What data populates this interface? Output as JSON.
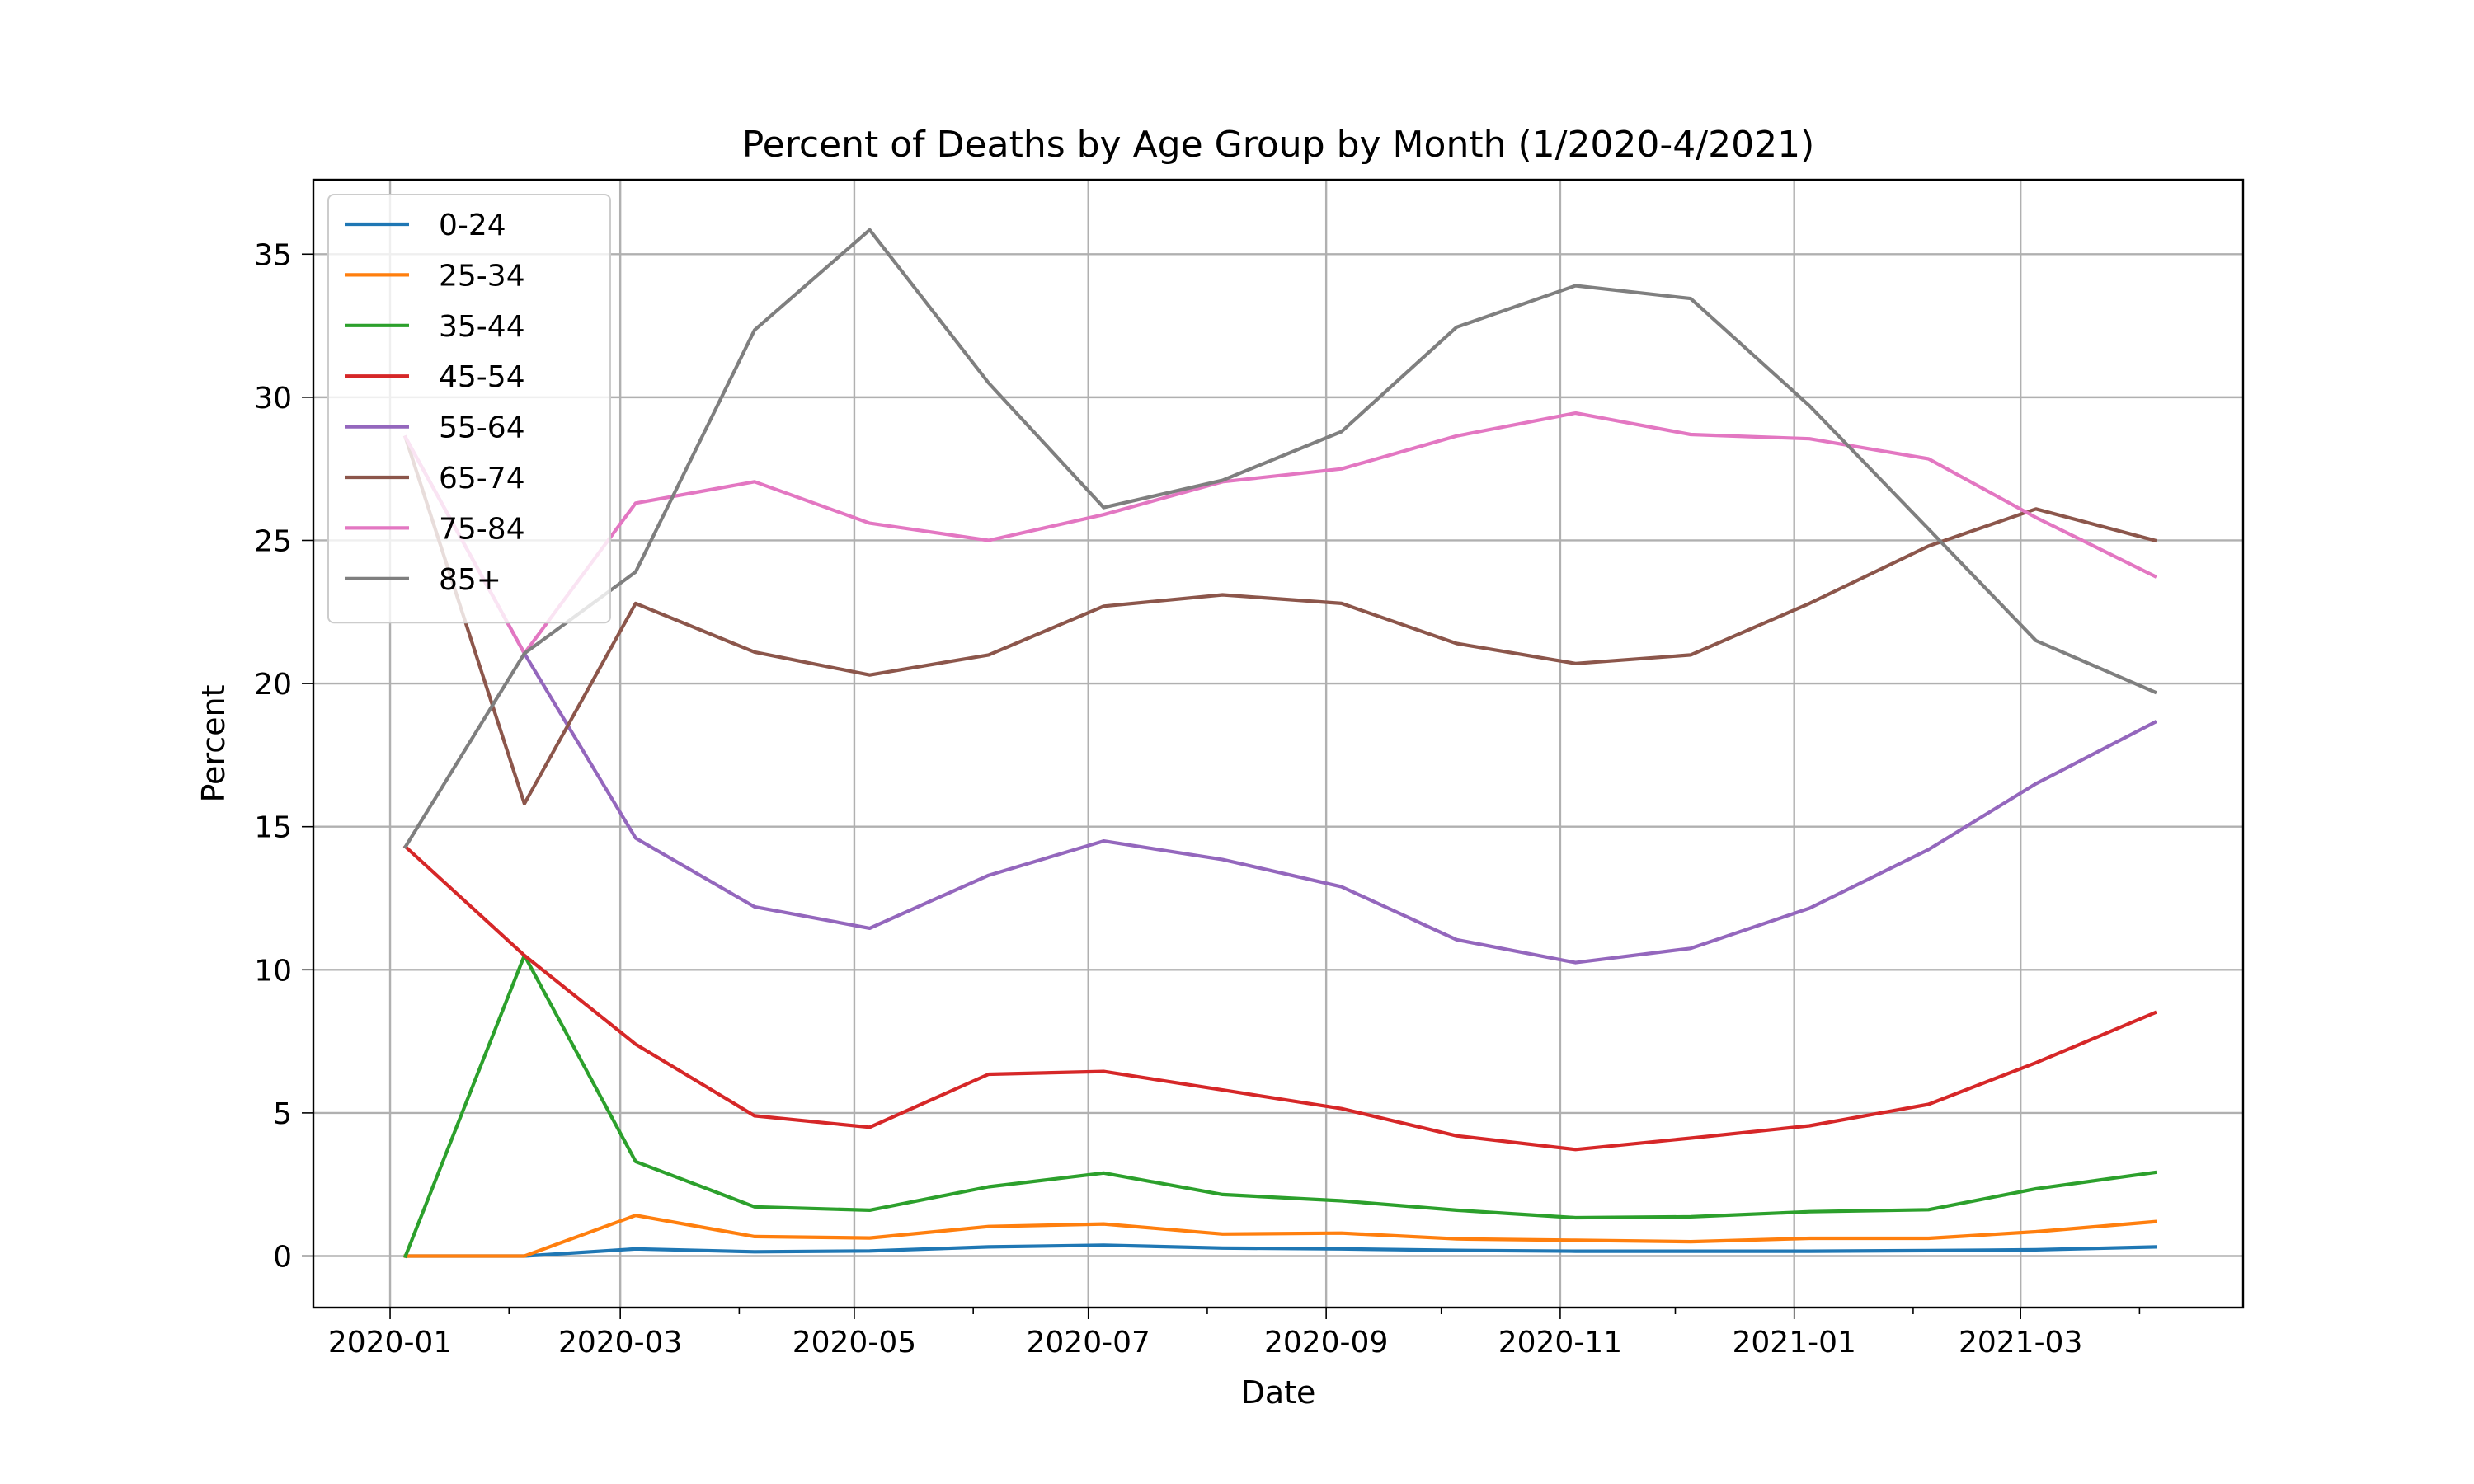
{
  "chart_data": {
    "type": "line",
    "title": "Percent of Deaths by Age Group by Month (1/2020-4/2021)",
    "xlabel": "Date",
    "ylabel": "Percent",
    "x": [
      "2020-01-05",
      "2020-02-05",
      "2020-03-05",
      "2020-04-05",
      "2020-05-05",
      "2020-06-05",
      "2020-07-05",
      "2020-08-05",
      "2020-09-05",
      "2020-10-05",
      "2020-11-05",
      "2020-12-05",
      "2021-01-05",
      "2021-02-05",
      "2021-03-05",
      "2021-04-05"
    ],
    "xlim": [
      "2019-12-12",
      "2021-04-28"
    ],
    "xticks": [
      {
        "date": "2020-01-01",
        "label": "2020-01"
      },
      {
        "date": "2020-03-01",
        "label": "2020-03"
      },
      {
        "date": "2020-05-01",
        "label": "2020-05"
      },
      {
        "date": "2020-07-01",
        "label": "2020-07"
      },
      {
        "date": "2020-09-01",
        "label": "2020-09"
      },
      {
        "date": "2020-11-01",
        "label": "2020-11"
      },
      {
        "date": "2021-01-01",
        "label": "2021-01"
      },
      {
        "date": "2021-03-01",
        "label": "2021-03"
      }
    ],
    "xminor": [
      "2020-02-01",
      "2020-04-01",
      "2020-06-01",
      "2020-08-01",
      "2020-10-01",
      "2020-12-01",
      "2021-02-01",
      "2021-04-01"
    ],
    "ylim": [
      -1.8,
      37.6
    ],
    "yticks": [
      0,
      5,
      10,
      15,
      20,
      25,
      30,
      35
    ],
    "grid": true,
    "legend_position": "upper-left",
    "series": [
      {
        "name": "0-24",
        "color": "#1f77b4",
        "values": [
          0,
          0,
          0.25,
          0.15,
          0.18,
          0.32,
          0.38,
          0.28,
          0.25,
          0.2,
          0.17,
          0.17,
          0.17,
          0.19,
          0.22,
          0.32
        ]
      },
      {
        "name": "25-34",
        "color": "#ff7f0e",
        "values": [
          0,
          0,
          1.42,
          0.68,
          0.63,
          1.03,
          1.12,
          0.77,
          0.8,
          0.6,
          0.55,
          0.5,
          0.62,
          0.62,
          0.85,
          1.2
        ]
      },
      {
        "name": "35-44",
        "color": "#2ca02c",
        "values": [
          0,
          10.5,
          3.3,
          1.72,
          1.6,
          2.42,
          2.9,
          2.15,
          1.93,
          1.6,
          1.34,
          1.37,
          1.55,
          1.62,
          2.35,
          2.92
        ]
      },
      {
        "name": "45-54",
        "color": "#d62728",
        "values": [
          14.3,
          10.5,
          7.4,
          4.9,
          4.5,
          6.35,
          6.45,
          5.8,
          5.15,
          4.2,
          3.72,
          4.12,
          4.55,
          5.3,
          6.75,
          8.5
        ]
      },
      {
        "name": "55-64",
        "color": "#9467bd",
        "values": [
          28.6,
          21.05,
          14.6,
          12.2,
          11.45,
          13.3,
          14.5,
          13.85,
          12.9,
          11.05,
          10.25,
          10.75,
          12.15,
          14.2,
          16.5,
          18.65
        ]
      },
      {
        "name": "65-74",
        "color": "#8c564b",
        "values": [
          28.6,
          15.8,
          22.8,
          21.1,
          20.3,
          21.0,
          22.7,
          23.1,
          22.8,
          21.4,
          20.7,
          21.0,
          22.8,
          24.8,
          26.1,
          25.0
        ]
      },
      {
        "name": "75-84",
        "color": "#e377c2",
        "values": [
          28.6,
          21.05,
          26.3,
          27.05,
          25.6,
          25.0,
          25.9,
          27.05,
          27.5,
          28.65,
          29.45,
          28.7,
          28.55,
          27.85,
          25.8,
          23.75
        ]
      },
      {
        "name": "85+",
        "color": "#7f7f7f",
        "values": [
          14.3,
          21.05,
          23.9,
          32.35,
          35.85,
          30.5,
          26.15,
          27.1,
          28.8,
          32.45,
          33.9,
          33.45,
          29.7,
          25.4,
          21.5,
          19.7
        ]
      }
    ]
  }
}
